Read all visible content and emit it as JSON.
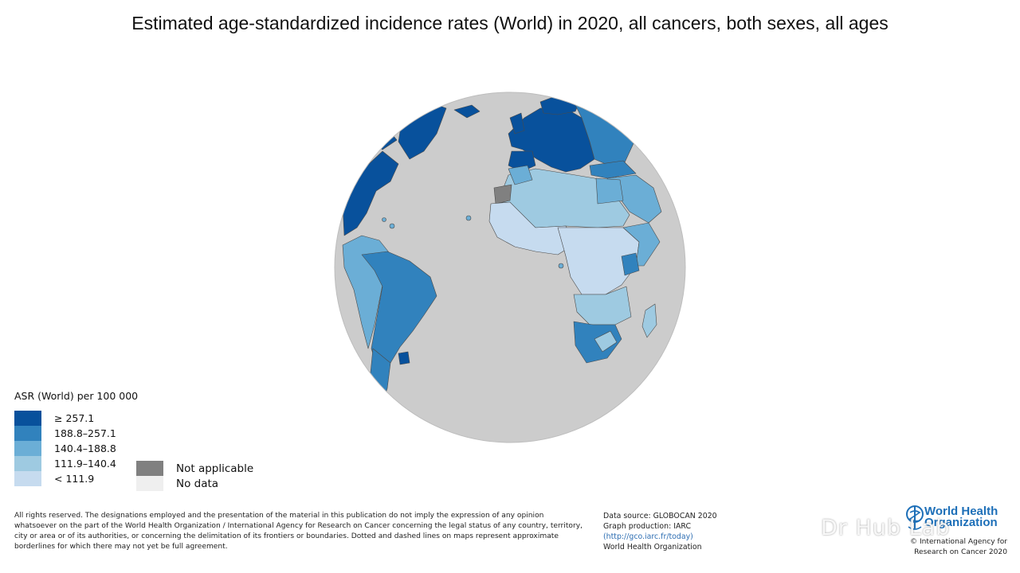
{
  "title": "Estimated age-standardized incidence rates (World) in 2020, all cancers, both sexes, all ages",
  "legend": {
    "title": "ASR (World) per 100 000",
    "classes": [
      {
        "label": "≥ 257.1",
        "color": "#08519c"
      },
      {
        "label": "188.8–257.1",
        "color": "#3182bd"
      },
      {
        "label": "140.4–188.8",
        "color": "#6baed6"
      },
      {
        "label": "111.9–140.4",
        "color": "#9ecae1"
      },
      {
        "label": "< 111.9",
        "color": "#c6dbef"
      }
    ],
    "special": [
      {
        "label": "Not applicable",
        "color": "#808080"
      },
      {
        "label": "No data",
        "color": "#efefef"
      }
    ]
  },
  "colors": {
    "ocean": "#cccccc",
    "border": "#555555"
  },
  "disclaimer": "All rights reserved. The designations employed and the presentation of the material in this publication do not imply the expression of any opinion whatsoever on the part of the World Health Organization / International Agency for Research on Cancer concerning the legal status of any country, territory, city or area or of its authorities, or concerning the delimitation of its frontiers or boundaries. Dotted and dashed lines on maps represent approximate borderlines for which there may not yet be full agreement.",
  "source": {
    "line1": "Data source: GLOBOCAN 2020",
    "line2": "Graph production: IARC",
    "link": "(http://gco.iarc.fr/today)",
    "line4": "World Health Organization"
  },
  "logo": {
    "name_line1": "World Health",
    "name_line2": "Organization",
    "copyright_line1": "© International Agency for",
    "copyright_line2": "Research on Cancer 2020",
    "icon": "who-emblem-icon"
  },
  "watermark": "Dr Hub Lab",
  "regions": {
    "greenland": "≥ 257.1",
    "north_america": "≥ 257.1",
    "europe": "≥ 257.1",
    "eastern_europe": "188.8–257.1",
    "south_america_east": "188.8–257.1",
    "south_america_west": "140.4–188.8",
    "north_africa": "111.9–140.4",
    "central_africa": "< 111.9",
    "southern_africa": "188.8–257.1",
    "western_sahara": "Not applicable"
  }
}
